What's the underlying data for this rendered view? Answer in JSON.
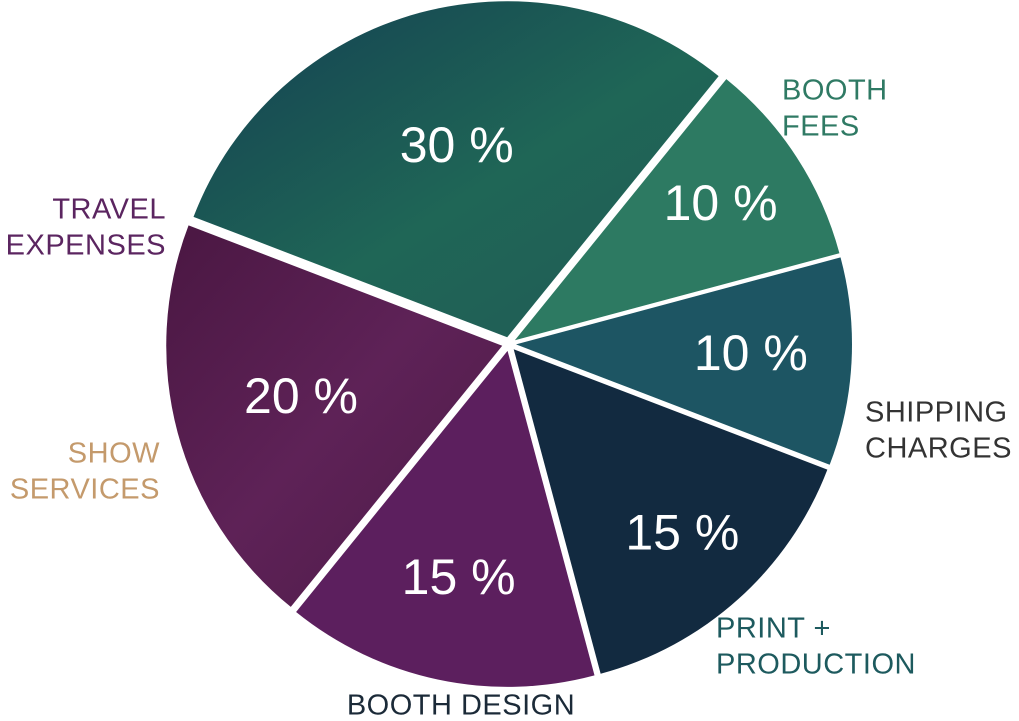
{
  "chart_data": {
    "type": "pie",
    "slices": [
      {
        "label_lines": [
          "BOOTH",
          "FEES"
        ],
        "value": 30,
        "value_label": "30 %",
        "color": "#1f5b58",
        "label_color": "#2f7a64"
      },
      {
        "label_lines": [
          "SHIPPING",
          "CHARGES"
        ],
        "value": 10,
        "value_label": "10 %",
        "color": "#2d7a62",
        "label_color": "#333333"
      },
      {
        "label_lines": [
          "PRINT +",
          "PRODUCTION"
        ],
        "value": 10,
        "value_label": "10 %",
        "color": "#1d5563",
        "label_color": "#1d5a5e"
      },
      {
        "label_lines": [
          "BOOTH DESIGN"
        ],
        "value": 15,
        "value_label": "15 %",
        "color": "#122a40",
        "label_color": "#1b2a38"
      },
      {
        "label_lines": [
          "SHOW",
          "SERVICES"
        ],
        "value": 15,
        "value_label": "15 %",
        "color": "#5c1f5e",
        "label_color": "#c49a6c"
      },
      {
        "label_lines": [
          "TRAVEL",
          "EXPENSES"
        ],
        "value": 20,
        "value_label": "20 %",
        "color": "#581f52",
        "label_color": "#5b2560"
      }
    ]
  }
}
